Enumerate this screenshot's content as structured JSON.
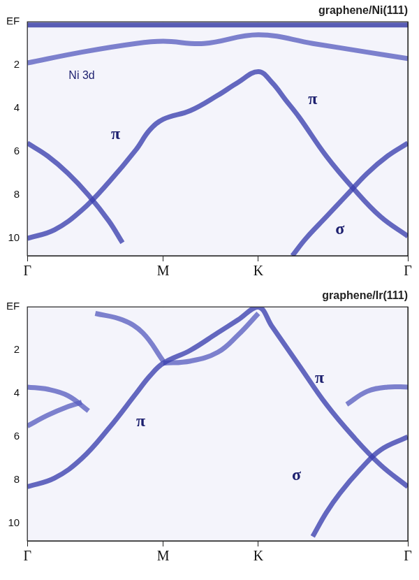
{
  "chart_data": [
    {
      "type": "line",
      "title": "graphene/Ni(111)",
      "xlim": [
        0,
        2.8
      ],
      "xticks": [
        {
          "value": 0,
          "label": "Γ"
        },
        {
          "value": 1,
          "label": "M"
        },
        {
          "value": 1.7,
          "label": "K"
        },
        {
          "value": 2.8,
          "label": "Γ"
        }
      ],
      "ylim": [
        0,
        10.8
      ],
      "yticks": [
        {
          "value": 0,
          "label": "EF"
        },
        2,
        4,
        6,
        8,
        10
      ],
      "grid": "x",
      "series": [
        {
          "color": "#3a3fae",
          "x": [
            0,
            0.2,
            0.4,
            0.6,
            0.8,
            0.9,
            1.0,
            1.2,
            1.4,
            1.55,
            1.7,
            1.8,
            1.9,
            2.0,
            2.2,
            2.4,
            2.6,
            2.8
          ],
          "values": [
            10.0,
            9.6,
            8.7,
            7.4,
            5.9,
            5.0,
            4.5,
            4.1,
            3.4,
            2.8,
            2.3,
            2.8,
            3.6,
            4.4,
            6.2,
            7.7,
            9.0,
            9.9
          ]
        },
        {
          "color": "#3a3fae",
          "x": [
            2.8,
            2.65,
            2.5,
            2.35,
            2.2,
            2.05,
            1.95
          ],
          "values": [
            5.6,
            6.2,
            7.0,
            8.0,
            9.0,
            10.0,
            10.8
          ]
        },
        {
          "color": "#3a3fae",
          "x": [
            0,
            0.15,
            0.3,
            0.45,
            0.6,
            0.7
          ],
          "values": [
            5.6,
            6.2,
            7.0,
            8.0,
            9.2,
            10.2
          ]
        },
        {
          "color": "#2c31a0",
          "x": [
            0,
            0.7,
            1.4,
            2.1,
            2.8
          ],
          "values": [
            0.15,
            0.15,
            0.15,
            0.15,
            0.15
          ]
        },
        {
          "color": "#5a5fc0",
          "x": [
            0,
            0.4,
            0.8,
            1.0,
            1.3,
            1.7,
            2.1,
            2.5,
            2.8
          ],
          "values": [
            1.9,
            1.4,
            1.0,
            0.9,
            1.0,
            0.6,
            1.0,
            1.4,
            1.7
          ]
        }
      ],
      "annotations": [
        {
          "text": "Ni 3d",
          "x": 0.4,
          "y": 2.5
        },
        {
          "text": "π",
          "x": 0.65,
          "y": 5.2
        },
        {
          "text": "π",
          "x": 2.1,
          "y": 3.6
        },
        {
          "text": "σ",
          "x": 2.3,
          "y": 9.6
        }
      ]
    },
    {
      "type": "line",
      "title": "graphene/Ir(111)",
      "xlim": [
        0,
        2.8
      ],
      "xticks": [
        {
          "value": 0,
          "label": "Γ"
        },
        {
          "value": 1,
          "label": "M"
        },
        {
          "value": 1.7,
          "label": "K"
        },
        {
          "value": 2.8,
          "label": "Γ"
        }
      ],
      "ylim": [
        0,
        10.8
      ],
      "yticks": [
        {
          "value": 0,
          "label": "EF"
        },
        2,
        4,
        6,
        8,
        10
      ],
      "grid": "x",
      "series": [
        {
          "color": "#3a3fae",
          "x": [
            0,
            0.2,
            0.4,
            0.6,
            0.8,
            0.9,
            1.0,
            1.2,
            1.4,
            1.55,
            1.7,
            1.8,
            1.9,
            2.0,
            2.2,
            2.4,
            2.6,
            2.8
          ],
          "values": [
            8.3,
            7.9,
            7.0,
            5.6,
            4.0,
            3.2,
            2.6,
            2.0,
            1.2,
            0.6,
            0.0,
            0.9,
            1.8,
            2.7,
            4.5,
            6.0,
            7.3,
            8.3
          ]
        },
        {
          "color": "#3a3fae",
          "x": [
            2.8,
            2.6,
            2.45,
            2.3,
            2.2,
            2.1
          ],
          "values": [
            6.0,
            6.6,
            7.5,
            8.6,
            9.5,
            10.6
          ]
        },
        {
          "color": "#5a5fc0",
          "x": [
            0,
            0.15,
            0.3,
            0.45
          ],
          "values": [
            3.7,
            3.8,
            4.1,
            4.8
          ]
        },
        {
          "color": "#5a5fc0",
          "x": [
            2.35,
            2.5,
            2.65,
            2.8
          ],
          "values": [
            4.5,
            3.9,
            3.7,
            3.7
          ]
        },
        {
          "color": "#5a5fc0",
          "x": [
            0.5,
            0.7,
            0.85,
            1.0
          ],
          "values": [
            0.3,
            0.6,
            1.2,
            2.5
          ]
        },
        {
          "color": "#5a5fc0",
          "x": [
            1.0,
            1.2,
            1.4,
            1.55,
            1.7
          ],
          "values": [
            2.6,
            2.5,
            2.1,
            1.3,
            0.3
          ]
        },
        {
          "color": "#5a5fc0",
          "x": [
            0,
            0.15,
            0.3,
            0.4
          ],
          "values": [
            5.5,
            5.0,
            4.6,
            4.4
          ]
        }
      ],
      "annotations": [
        {
          "text": "π",
          "x": 0.835,
          "y": 5.3
        },
        {
          "text": "π",
          "x": 2.15,
          "y": 3.3
        },
        {
          "text": "σ",
          "x": 1.98,
          "y": 7.8
        }
      ]
    }
  ]
}
